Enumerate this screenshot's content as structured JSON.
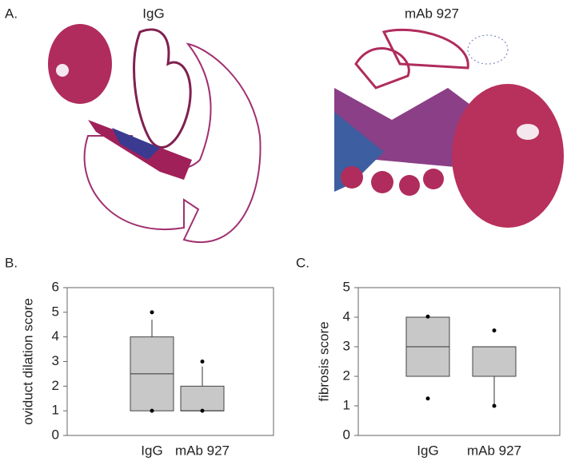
{
  "panel_labels": [
    "A.",
    "B.",
    "C."
  ],
  "image_titles": [
    "IgG",
    "mAb 927"
  ],
  "chart_data": [
    {
      "type": "box",
      "ylabel": "oviduct dilation score",
      "categories": [
        "IgG",
        "mAb 927"
      ],
      "boxes": [
        {
          "whisker_low": 1,
          "q1": 1,
          "median": 2.5,
          "q3": 4,
          "whisker_high": 4.7,
          "outliers": [
            1,
            5
          ]
        },
        {
          "whisker_low": 1,
          "q1": 1,
          "median": 1,
          "q3": 2,
          "whisker_high": 2.8,
          "outliers": [
            1,
            3
          ]
        }
      ],
      "color": "#c8c8c8",
      "ylim": [
        0,
        6
      ],
      "yticks": [
        0,
        1,
        2,
        3,
        4,
        5,
        6
      ]
    },
    {
      "type": "box",
      "ylabel": "fibrosis score",
      "categories": [
        "IgG",
        "mAb 927"
      ],
      "boxes": [
        {
          "whisker_low": 2,
          "q1": 2,
          "median": 3,
          "q3": 4,
          "whisker_high": 4,
          "outliers": [
            1.25,
            4.02
          ]
        },
        {
          "whisker_low": 1,
          "q1": 2,
          "median": 3,
          "q3": 3,
          "whisker_high": 3,
          "outliers": [
            1,
            3.55
          ]
        }
      ],
      "color": "#c8c8c8",
      "ylim": [
        0,
        5
      ],
      "yticks": [
        0,
        1,
        2,
        3,
        4,
        5
      ]
    }
  ]
}
